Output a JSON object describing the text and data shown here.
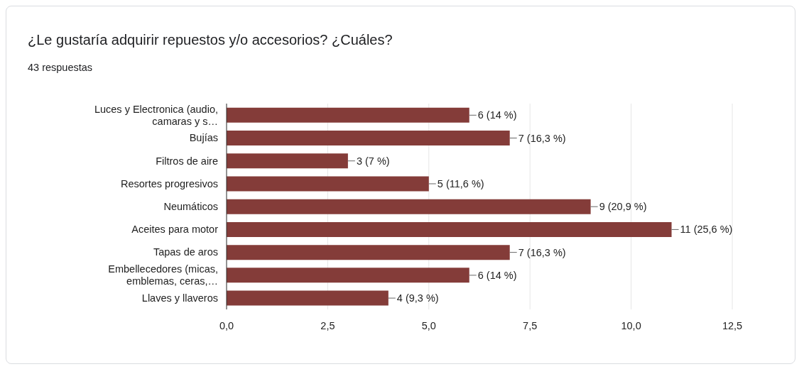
{
  "chart_data": {
    "type": "bar",
    "orientation": "horizontal",
    "title": "¿Le gustaría adquirir repuestos y/o accesorios? ¿Cuáles?",
    "subtitle": "43 respuestas",
    "categories": [
      "Luces y Electronica (audio, camaras y s…",
      "Bujías",
      "Filtros de aire",
      "Resortes progresivos",
      "Neumáticos",
      "Aceites para motor",
      "Tapas de aros",
      "Embellecedores (micas, emblemas, ceras,…",
      "Llaves y llaveros"
    ],
    "values": [
      6,
      7,
      3,
      5,
      9,
      11,
      7,
      6,
      4
    ],
    "value_labels": [
      "6 (14 %)",
      "7 (16,3 %)",
      "3 (7 %)",
      "5 (11,6 %)",
      "9 (20,9 %)",
      "11 (25,6 %)",
      "7 (16,3 %)",
      "6 (14 %)",
      "4 (9,3 %)"
    ],
    "color": "#843c39",
    "xlim": [
      0,
      12.5
    ],
    "xticks": [
      {
        "value": 0,
        "label": "0,0"
      },
      {
        "value": 2.5,
        "label": "2,5"
      },
      {
        "value": 5,
        "label": "5,0"
      },
      {
        "value": 7.5,
        "label": "7,5"
      },
      {
        "value": 10,
        "label": "10,0"
      },
      {
        "value": 12.5,
        "label": "12,5"
      }
    ],
    "grid": "x",
    "legend": false
  }
}
